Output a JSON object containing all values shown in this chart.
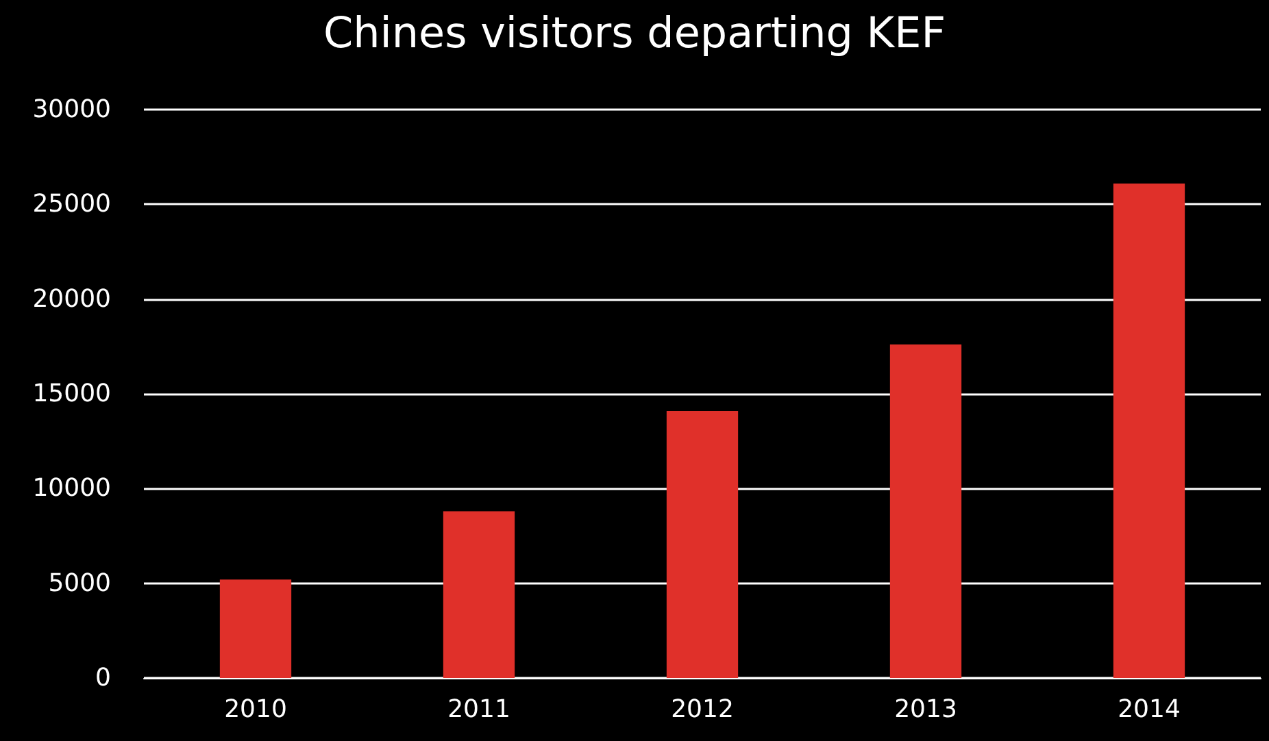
{
  "chart_data": {
    "type": "bar",
    "title": "Chines visitors departing KEF",
    "categories": [
      "2010",
      "2011",
      "2012",
      "2013",
      "2014"
    ],
    "values": [
      5200,
      8800,
      14100,
      17600,
      26100
    ],
    "color": "#e0302a",
    "ylim": [
      0,
      30000
    ],
    "yticks": [
      0,
      5000,
      10000,
      15000,
      20000,
      25000,
      30000
    ],
    "grid": "y"
  }
}
